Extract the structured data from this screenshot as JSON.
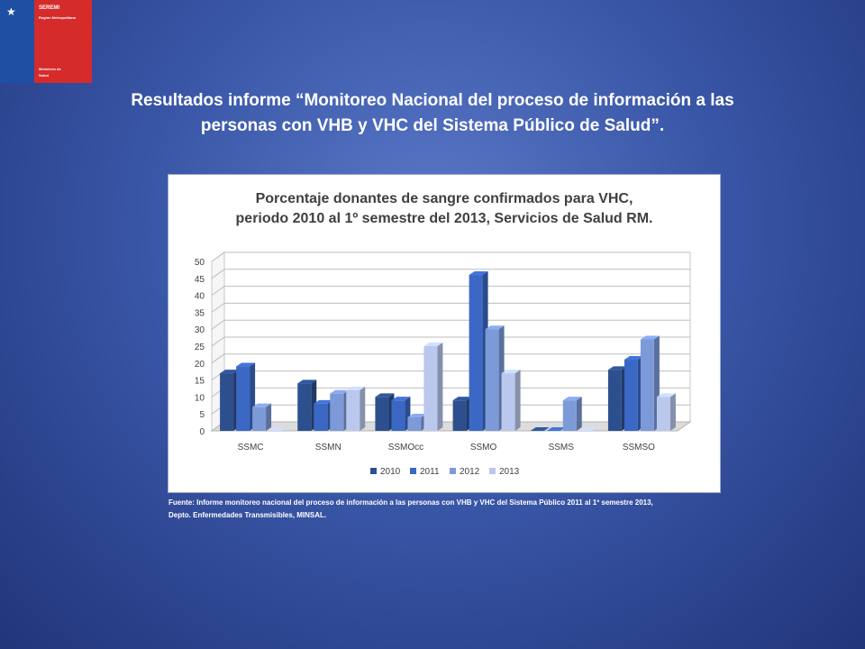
{
  "logo": {
    "line1": "SEREMI",
    "line2": "Región Metropolitana",
    "line3": "Ministerio de",
    "line4": "Salud"
  },
  "slide": {
    "title_line1": "Resultados informe “Monitoreo Nacional del proceso de información a las",
    "title_line2": "personas con VHB y VHC del Sistema Público de Salud”.",
    "source_line1": "Fuente: Informe monitoreo nacional del proceso de información a las personas con VHB y VHC del Sistema Público 2011 al 1º semestre 2013,",
    "source_line2": "Depto. Enfermedades Transmisibles, MINSAL."
  },
  "chart_data": {
    "type": "bar",
    "title_line1": "Porcentaje donantes de sangre confirmados para VHC,",
    "title_line2": "periodo 2010 al 1º semestre del 2013, Servicios de Salud RM.",
    "categories": [
      "SSMC",
      "SSMN",
      "SSMOcc",
      "SSMO",
      "SSMS",
      "SSMSO"
    ],
    "series": [
      {
        "name": "2010",
        "values": [
          17,
          14,
          10,
          9,
          0,
          18
        ],
        "color": "#2d4f8e"
      },
      {
        "name": "2011",
        "values": [
          19,
          8,
          9,
          46,
          0,
          21
        ],
        "color": "#3b68c4"
      },
      {
        "name": "2012",
        "values": [
          7,
          11,
          4,
          30,
          9,
          27
        ],
        "color": "#7d9ad8"
      },
      {
        "name": "2013",
        "values": [
          0,
          12,
          25,
          17,
          0,
          10
        ],
        "color": "#b9c8ec"
      }
    ],
    "yticks": [
      "0",
      "5",
      "10",
      "15",
      "20",
      "25",
      "30",
      "35",
      "40",
      "45",
      "50"
    ],
    "ylim": [
      0,
      50
    ],
    "grid": true,
    "legend_position": "bottom"
  }
}
